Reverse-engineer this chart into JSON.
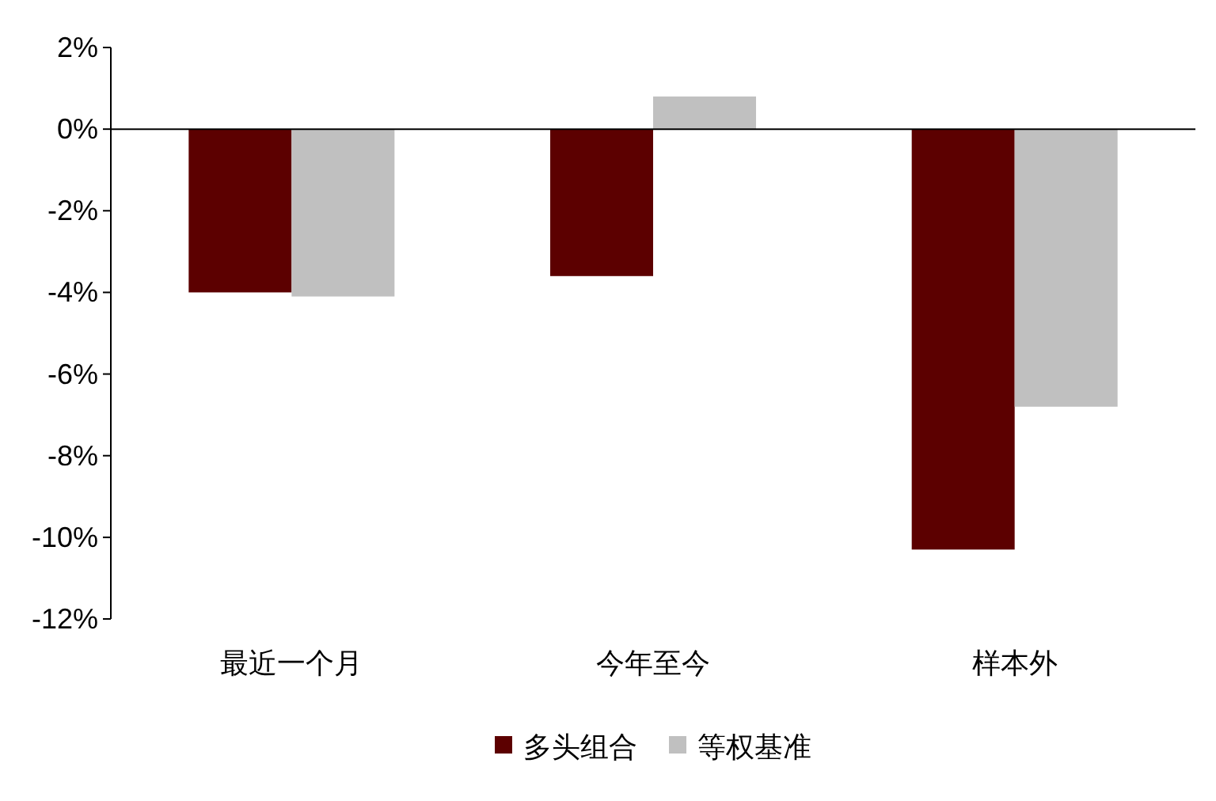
{
  "chart_data": {
    "type": "bar",
    "categories": [
      "最近一个月",
      "今年至今",
      "样本外"
    ],
    "series": [
      {
        "name": "多头组合",
        "color": "#5c0000",
        "values": [
          -4.0,
          -3.6,
          -10.3
        ]
      },
      {
        "name": "等权基准",
        "color": "#c0c0c0",
        "values": [
          -4.1,
          0.8,
          -6.8
        ]
      }
    ],
    "ylim": [
      -12,
      2
    ],
    "yticks": [
      {
        "value": 2,
        "label": "2%"
      },
      {
        "value": 0,
        "label": "0%"
      },
      {
        "value": -2,
        "label": "-2%"
      },
      {
        "value": -4,
        "label": "-4%"
      },
      {
        "value": -6,
        "label": "-6%"
      },
      {
        "value": -8,
        "label": "-8%"
      },
      {
        "value": -10,
        "label": "-10%"
      },
      {
        "value": -12,
        "label": "-12%"
      }
    ],
    "legend": "bottom"
  }
}
